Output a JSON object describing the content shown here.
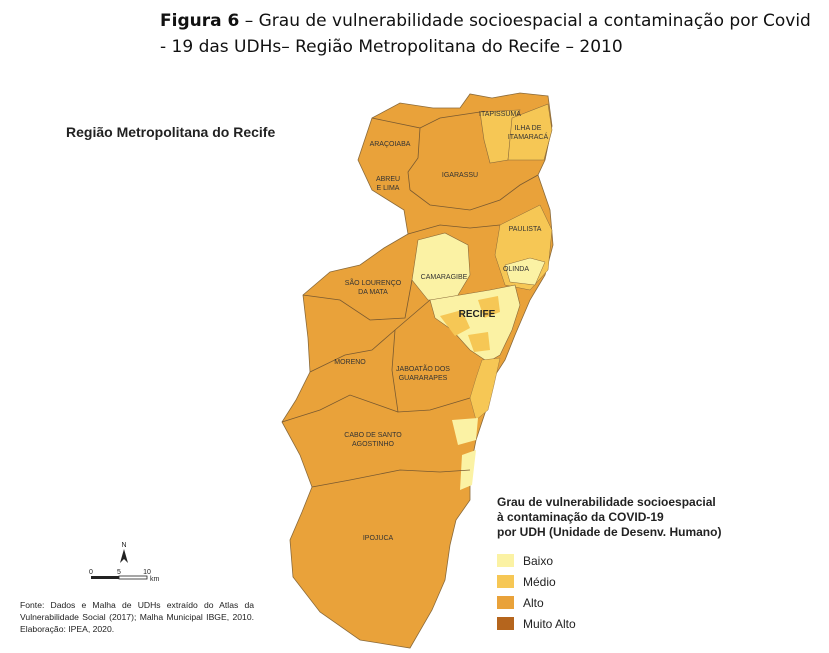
{
  "caption": {
    "figure_label": "Figura 6",
    "text": " – Grau de vulnerabilidade socioespacial a contaminação por Covid - 19 das UDHs– Região Metropolitana do Recife – 2010"
  },
  "map_title": "Região Metropolitana do Recife",
  "municipalities": {
    "itapissuma": "ITAPISSUMA",
    "ilha_line1": "ILHA DE",
    "ilha_line2": "ITAMARACÁ",
    "aracoiaba": "ARAÇOIABA",
    "abreu_line1": "ABREU",
    "abreu_line2": "E LIMA",
    "igarassu": "IGARASSU",
    "paulista": "PAULISTA",
    "camaragibe": "CAMARAGIBE",
    "olinda": "OLINDA",
    "sao_lourenco_line1": "SÃO LOURENÇO",
    "sao_lourenco_line2": "DA MATA",
    "recife": "RECIFE",
    "moreno": "MORENO",
    "jaboatao_line1": "JABOATÃO DOS",
    "jaboatao_line2": "GUARARAPES",
    "cabo_line1": "CABO DE SANTO",
    "cabo_line2": "AGOSTINHO",
    "ipojuca": "IPOJUCA"
  },
  "legend": {
    "title_line1": "Grau de vulnerabilidade socioespacial",
    "title_line2": "à contaminação da COVID-19",
    "title_line3": "por UDH (Unidade de Desenv. Humano)",
    "items": [
      {
        "label": "Baixo",
        "color": "#fbf2a4"
      },
      {
        "label": "Médio",
        "color": "#f6c755"
      },
      {
        "label": "Alto",
        "color": "#e9a23a"
      },
      {
        "label": "Muito Alto",
        "color": "#b5651d"
      }
    ]
  },
  "scale": {
    "ticks": [
      "0",
      "5",
      "10"
    ],
    "unit": "km",
    "north": "N"
  },
  "source": "Fonte: Dados e Malha de UDHs extraído do Atlas da Vulnerabilidade Social (2017); Malha Municipal IBGE, 2010. Elaboração: IPEA, 2020."
}
